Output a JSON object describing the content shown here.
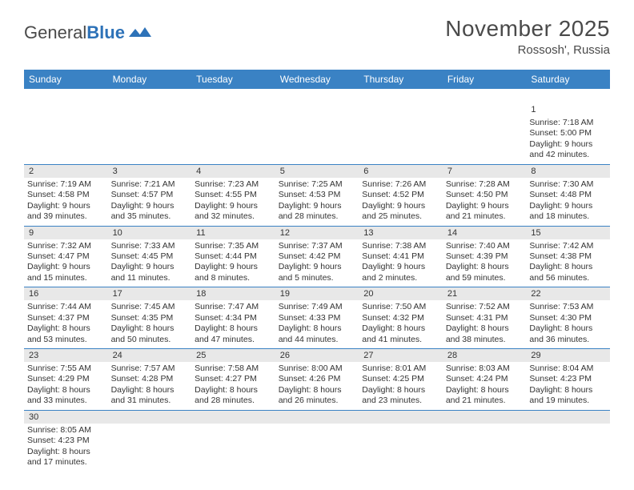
{
  "brand": {
    "part1": "General",
    "part2": "Blue"
  },
  "header": {
    "title": "November 2025",
    "location": "Rossosh', Russia"
  },
  "colors": {
    "header_bg": "#3a82c4",
    "text": "#333333",
    "daynum_bg": "#e8e8e8",
    "border": "#3a82c4"
  },
  "weekdays": [
    "Sunday",
    "Monday",
    "Tuesday",
    "Wednesday",
    "Thursday",
    "Friday",
    "Saturday"
  ],
  "weeks": [
    [
      {
        "n": "",
        "sunrise": "",
        "sunset": "",
        "day": ""
      },
      {
        "n": "",
        "sunrise": "",
        "sunset": "",
        "day": ""
      },
      {
        "n": "",
        "sunrise": "",
        "sunset": "",
        "day": ""
      },
      {
        "n": "",
        "sunrise": "",
        "sunset": "",
        "day": ""
      },
      {
        "n": "",
        "sunrise": "",
        "sunset": "",
        "day": ""
      },
      {
        "n": "",
        "sunrise": "",
        "sunset": "",
        "day": ""
      },
      {
        "n": "1",
        "sunrise": "Sunrise: 7:18 AM",
        "sunset": "Sunset: 5:00 PM",
        "day": "Daylight: 9 hours and 42 minutes."
      }
    ],
    [
      {
        "n": "2",
        "sunrise": "Sunrise: 7:19 AM",
        "sunset": "Sunset: 4:58 PM",
        "day": "Daylight: 9 hours and 39 minutes."
      },
      {
        "n": "3",
        "sunrise": "Sunrise: 7:21 AM",
        "sunset": "Sunset: 4:57 PM",
        "day": "Daylight: 9 hours and 35 minutes."
      },
      {
        "n": "4",
        "sunrise": "Sunrise: 7:23 AM",
        "sunset": "Sunset: 4:55 PM",
        "day": "Daylight: 9 hours and 32 minutes."
      },
      {
        "n": "5",
        "sunrise": "Sunrise: 7:25 AM",
        "sunset": "Sunset: 4:53 PM",
        "day": "Daylight: 9 hours and 28 minutes."
      },
      {
        "n": "6",
        "sunrise": "Sunrise: 7:26 AM",
        "sunset": "Sunset: 4:52 PM",
        "day": "Daylight: 9 hours and 25 minutes."
      },
      {
        "n": "7",
        "sunrise": "Sunrise: 7:28 AM",
        "sunset": "Sunset: 4:50 PM",
        "day": "Daylight: 9 hours and 21 minutes."
      },
      {
        "n": "8",
        "sunrise": "Sunrise: 7:30 AM",
        "sunset": "Sunset: 4:48 PM",
        "day": "Daylight: 9 hours and 18 minutes."
      }
    ],
    [
      {
        "n": "9",
        "sunrise": "Sunrise: 7:32 AM",
        "sunset": "Sunset: 4:47 PM",
        "day": "Daylight: 9 hours and 15 minutes."
      },
      {
        "n": "10",
        "sunrise": "Sunrise: 7:33 AM",
        "sunset": "Sunset: 4:45 PM",
        "day": "Daylight: 9 hours and 11 minutes."
      },
      {
        "n": "11",
        "sunrise": "Sunrise: 7:35 AM",
        "sunset": "Sunset: 4:44 PM",
        "day": "Daylight: 9 hours and 8 minutes."
      },
      {
        "n": "12",
        "sunrise": "Sunrise: 7:37 AM",
        "sunset": "Sunset: 4:42 PM",
        "day": "Daylight: 9 hours and 5 minutes."
      },
      {
        "n": "13",
        "sunrise": "Sunrise: 7:38 AM",
        "sunset": "Sunset: 4:41 PM",
        "day": "Daylight: 9 hours and 2 minutes."
      },
      {
        "n": "14",
        "sunrise": "Sunrise: 7:40 AM",
        "sunset": "Sunset: 4:39 PM",
        "day": "Daylight: 8 hours and 59 minutes."
      },
      {
        "n": "15",
        "sunrise": "Sunrise: 7:42 AM",
        "sunset": "Sunset: 4:38 PM",
        "day": "Daylight: 8 hours and 56 minutes."
      }
    ],
    [
      {
        "n": "16",
        "sunrise": "Sunrise: 7:44 AM",
        "sunset": "Sunset: 4:37 PM",
        "day": "Daylight: 8 hours and 53 minutes."
      },
      {
        "n": "17",
        "sunrise": "Sunrise: 7:45 AM",
        "sunset": "Sunset: 4:35 PM",
        "day": "Daylight: 8 hours and 50 minutes."
      },
      {
        "n": "18",
        "sunrise": "Sunrise: 7:47 AM",
        "sunset": "Sunset: 4:34 PM",
        "day": "Daylight: 8 hours and 47 minutes."
      },
      {
        "n": "19",
        "sunrise": "Sunrise: 7:49 AM",
        "sunset": "Sunset: 4:33 PM",
        "day": "Daylight: 8 hours and 44 minutes."
      },
      {
        "n": "20",
        "sunrise": "Sunrise: 7:50 AM",
        "sunset": "Sunset: 4:32 PM",
        "day": "Daylight: 8 hours and 41 minutes."
      },
      {
        "n": "21",
        "sunrise": "Sunrise: 7:52 AM",
        "sunset": "Sunset: 4:31 PM",
        "day": "Daylight: 8 hours and 38 minutes."
      },
      {
        "n": "22",
        "sunrise": "Sunrise: 7:53 AM",
        "sunset": "Sunset: 4:30 PM",
        "day": "Daylight: 8 hours and 36 minutes."
      }
    ],
    [
      {
        "n": "23",
        "sunrise": "Sunrise: 7:55 AM",
        "sunset": "Sunset: 4:29 PM",
        "day": "Daylight: 8 hours and 33 minutes."
      },
      {
        "n": "24",
        "sunrise": "Sunrise: 7:57 AM",
        "sunset": "Sunset: 4:28 PM",
        "day": "Daylight: 8 hours and 31 minutes."
      },
      {
        "n": "25",
        "sunrise": "Sunrise: 7:58 AM",
        "sunset": "Sunset: 4:27 PM",
        "day": "Daylight: 8 hours and 28 minutes."
      },
      {
        "n": "26",
        "sunrise": "Sunrise: 8:00 AM",
        "sunset": "Sunset: 4:26 PM",
        "day": "Daylight: 8 hours and 26 minutes."
      },
      {
        "n": "27",
        "sunrise": "Sunrise: 8:01 AM",
        "sunset": "Sunset: 4:25 PM",
        "day": "Daylight: 8 hours and 23 minutes."
      },
      {
        "n": "28",
        "sunrise": "Sunrise: 8:03 AM",
        "sunset": "Sunset: 4:24 PM",
        "day": "Daylight: 8 hours and 21 minutes."
      },
      {
        "n": "29",
        "sunrise": "Sunrise: 8:04 AM",
        "sunset": "Sunset: 4:23 PM",
        "day": "Daylight: 8 hours and 19 minutes."
      }
    ],
    [
      {
        "n": "30",
        "sunrise": "Sunrise: 8:05 AM",
        "sunset": "Sunset: 4:23 PM",
        "day": "Daylight: 8 hours and 17 minutes."
      },
      {
        "n": "",
        "sunrise": "",
        "sunset": "",
        "day": ""
      },
      {
        "n": "",
        "sunrise": "",
        "sunset": "",
        "day": ""
      },
      {
        "n": "",
        "sunrise": "",
        "sunset": "",
        "day": ""
      },
      {
        "n": "",
        "sunrise": "",
        "sunset": "",
        "day": ""
      },
      {
        "n": "",
        "sunrise": "",
        "sunset": "",
        "day": ""
      },
      {
        "n": "",
        "sunrise": "",
        "sunset": "",
        "day": ""
      }
    ]
  ]
}
